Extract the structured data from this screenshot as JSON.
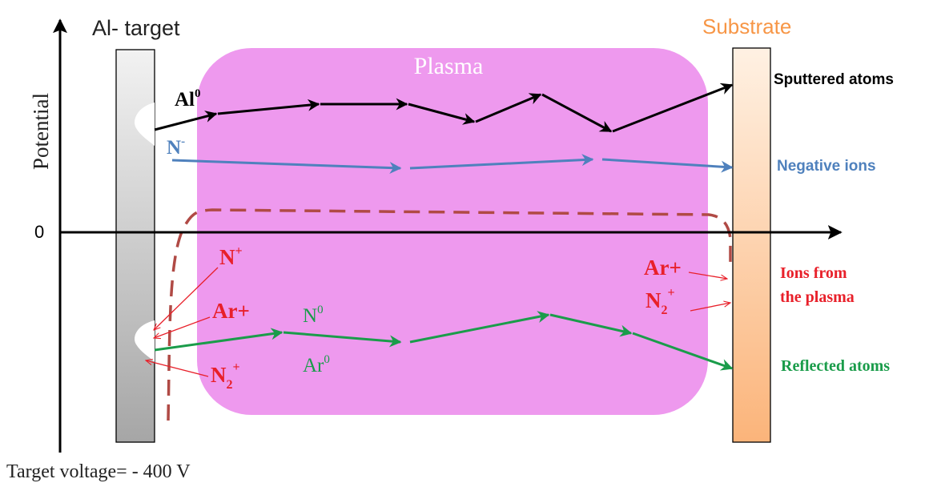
{
  "labels": {
    "target": "Al- target",
    "substrate": "Substrate",
    "plasma": "Plasma",
    "potential_axis": "Potential",
    "zero": "0",
    "target_voltage": "Target voltage= - 400 V",
    "sputtered_atoms": "Sputtered atoms",
    "negative_ions": "Negative ions",
    "ions_from_line1": "Ions from",
    "ions_from_line2": "the plasma",
    "reflected_atoms": "Reflected atoms"
  },
  "species": {
    "al0": {
      "base": "Al",
      "sup": "0"
    },
    "n_minus": {
      "base": "N",
      "sup": "-"
    },
    "n_plus": {
      "base": "N",
      "sup": "+"
    },
    "ar_plus_left": "Ar+",
    "n2_plus_left": {
      "base": "N",
      "sub": "2",
      "sup": "+"
    },
    "ar_plus_right": "Ar+",
    "n2_plus_right": {
      "base": "N",
      "sub": "2",
      "sup": "+"
    },
    "n0": {
      "base": "N",
      "sup": "0"
    },
    "ar0": {
      "base": "Ar",
      "sup": "0"
    }
  },
  "colors": {
    "plasma": "#ee99ee",
    "plasma_text": "#ffffff",
    "target_gray": "#cccccc",
    "substrate_text": "#f79646",
    "sputtered": "#000000",
    "negative": "#4f81bd",
    "positive_ions": "#e8202a",
    "reflected": "#1a9c4a",
    "potential_curve": "#b04a45"
  }
}
